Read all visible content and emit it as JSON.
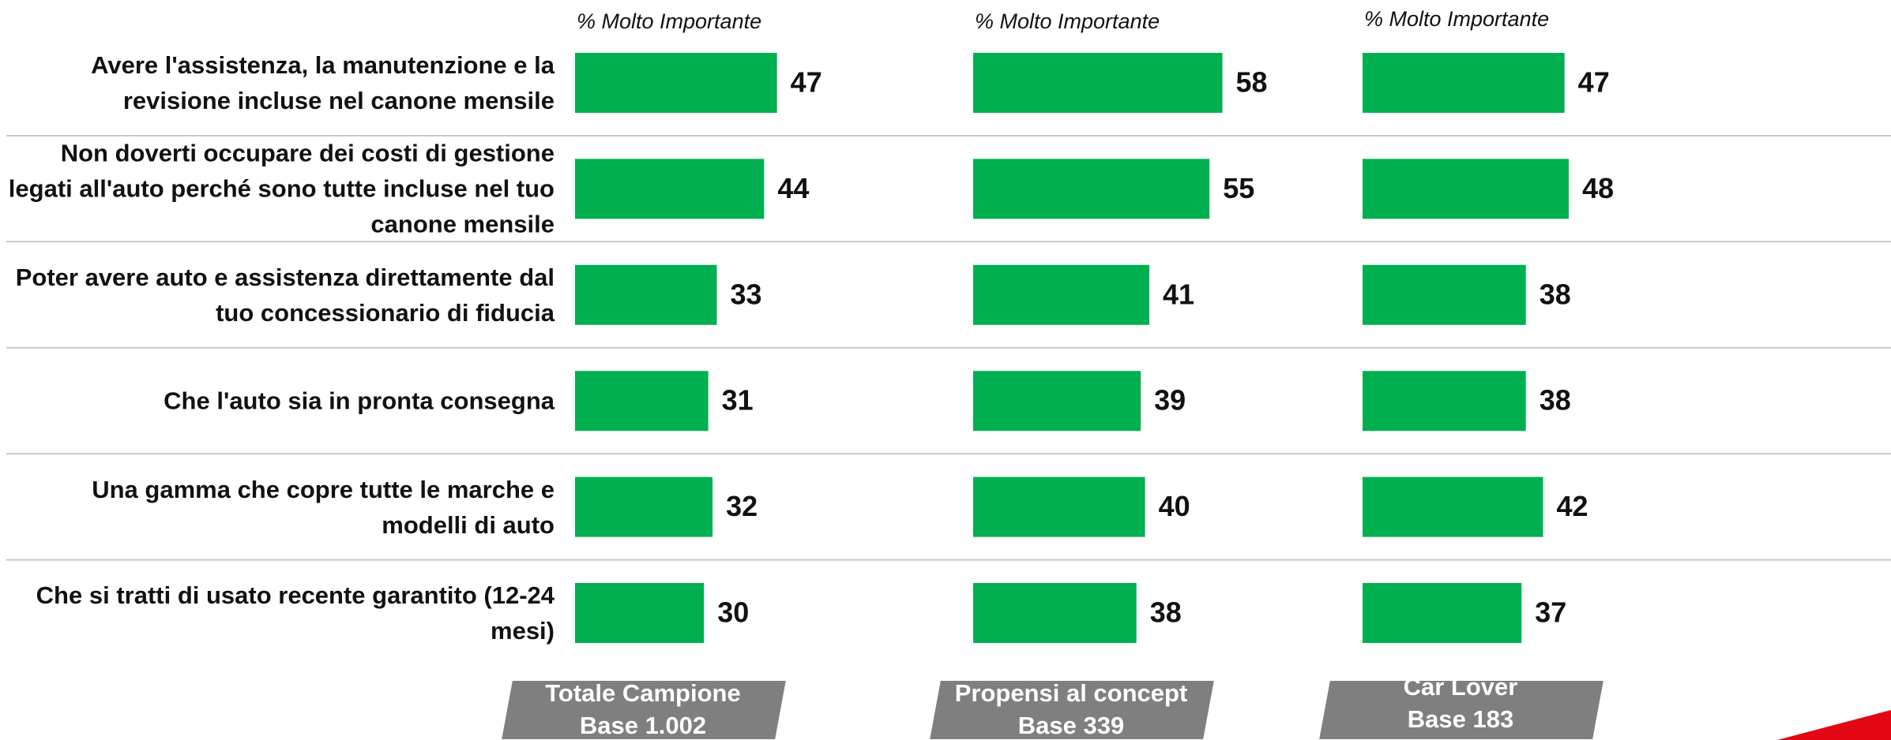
{
  "chart_data": {
    "type": "bar",
    "categories": [
      "Avere l'assistenza, la manutenzione e la revisione incluse nel canone mensile",
      "Non doverti occupare dei costi di gestione legati all'auto perché sono tutte incluse nel tuo canone mensile",
      "Poter avere auto e assistenza direttamente dal tuo concessionario di fiducia",
      "Che l'auto sia in pronta consegna",
      "Una gamma che copre tutte le marche e modelli di auto",
      "Che si tratti di usato recente garantito (12-24 mesi)"
    ],
    "series": [
      {
        "name": "Totale Campione",
        "base": "Base 1.002",
        "subtitle": "% Molto Importante",
        "color": "#00b050",
        "values": [
          47,
          44,
          33,
          31,
          32,
          30
        ]
      },
      {
        "name": "Propensi al concept",
        "base": "Base 339",
        "subtitle": "% Molto Importante",
        "color": "#00b050",
        "values": [
          58,
          55,
          41,
          39,
          40,
          38
        ]
      },
      {
        "name": "Car Lover",
        "base": "Base 183",
        "subtitle": "% Molto Importante",
        "color": "#00b050",
        "values": [
          47,
          48,
          38,
          38,
          42,
          37
        ]
      }
    ]
  }
}
